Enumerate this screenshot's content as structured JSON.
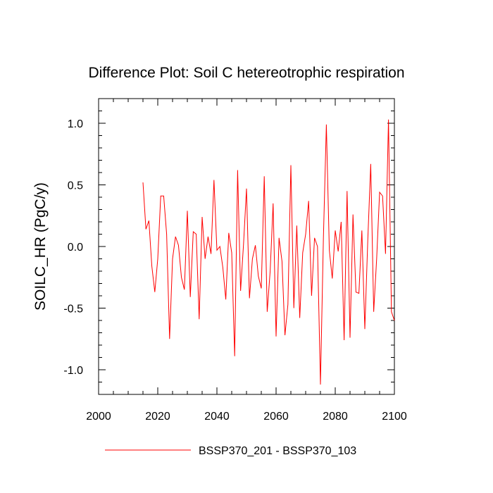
{
  "chart_data": {
    "type": "line",
    "title": "Difference Plot: Soil C hetereotrophic respiration",
    "xlabel": "",
    "ylabel": "SOILC_HR  (PgC/y)",
    "xlim": [
      2000,
      2100
    ],
    "ylim": [
      -1.2,
      1.2
    ],
    "x_ticks": [
      2000,
      2020,
      2040,
      2060,
      2080,
      2100
    ],
    "y_ticks": [
      -1.0,
      -0.5,
      0.0,
      0.5,
      1.0
    ],
    "x_tick_labels": [
      "2000",
      "2020",
      "2040",
      "2060",
      "2080",
      "2100"
    ],
    "y_tick_labels": [
      "-1.0",
      "-0.5",
      "0.0",
      "0.5",
      "1.0"
    ],
    "grid": false,
    "legend_position": "bottom-center",
    "series": [
      {
        "name": "BSSP370_201 - BSSP370_103",
        "color": "#ff0000",
        "x": [
          2015,
          2016,
          2017,
          2018,
          2019,
          2020,
          2021,
          2022,
          2023,
          2024,
          2025,
          2026,
          2027,
          2028,
          2029,
          2030,
          2031,
          2032,
          2033,
          2034,
          2035,
          2036,
          2037,
          2038,
          2039,
          2040,
          2041,
          2042,
          2043,
          2044,
          2045,
          2046,
          2047,
          2048,
          2049,
          2050,
          2051,
          2052,
          2053,
          2054,
          2055,
          2056,
          2057,
          2058,
          2059,
          2060,
          2061,
          2062,
          2063,
          2064,
          2065,
          2066,
          2067,
          2068,
          2069,
          2070,
          2071,
          2072,
          2073,
          2074,
          2075,
          2076,
          2077,
          2078,
          2079,
          2080,
          2081,
          2082,
          2083,
          2084,
          2085,
          2086,
          2087,
          2088,
          2089,
          2090,
          2091,
          2092,
          2093,
          2094,
          2095,
          2096,
          2097,
          2098,
          2099,
          2100
        ],
        "values": [
          0.52,
          0.14,
          0.21,
          -0.16,
          -0.37,
          -0.1,
          0.41,
          0.41,
          0.1,
          -0.75,
          -0.1,
          0.08,
          0.01,
          -0.25,
          -0.35,
          0.29,
          -0.41,
          0.12,
          0.1,
          -0.59,
          0.24,
          -0.1,
          0.08,
          -0.06,
          0.54,
          -0.03,
          0.0,
          -0.17,
          -0.43,
          0.11,
          -0.05,
          -0.89,
          0.62,
          -0.36,
          0.02,
          0.47,
          -0.42,
          -0.1,
          0.01,
          -0.24,
          -0.34,
          0.57,
          -0.53,
          -0.2,
          0.35,
          -0.73,
          0.07,
          -0.12,
          -0.72,
          -0.47,
          0.66,
          -0.5,
          0.17,
          -0.58,
          -0.05,
          0.1,
          0.37,
          -0.4,
          0.07,
          0.0,
          -1.12,
          0.07,
          0.99,
          -0.03,
          -0.26,
          0.13,
          -0.04,
          0.2,
          -0.76,
          0.45,
          -0.74,
          0.26,
          -0.37,
          -0.38,
          0.13,
          -0.67,
          0.05,
          0.67,
          -0.53,
          -0.1,
          0.44,
          0.41,
          -0.06,
          1.03,
          -0.53,
          -0.6
        ]
      }
    ]
  }
}
